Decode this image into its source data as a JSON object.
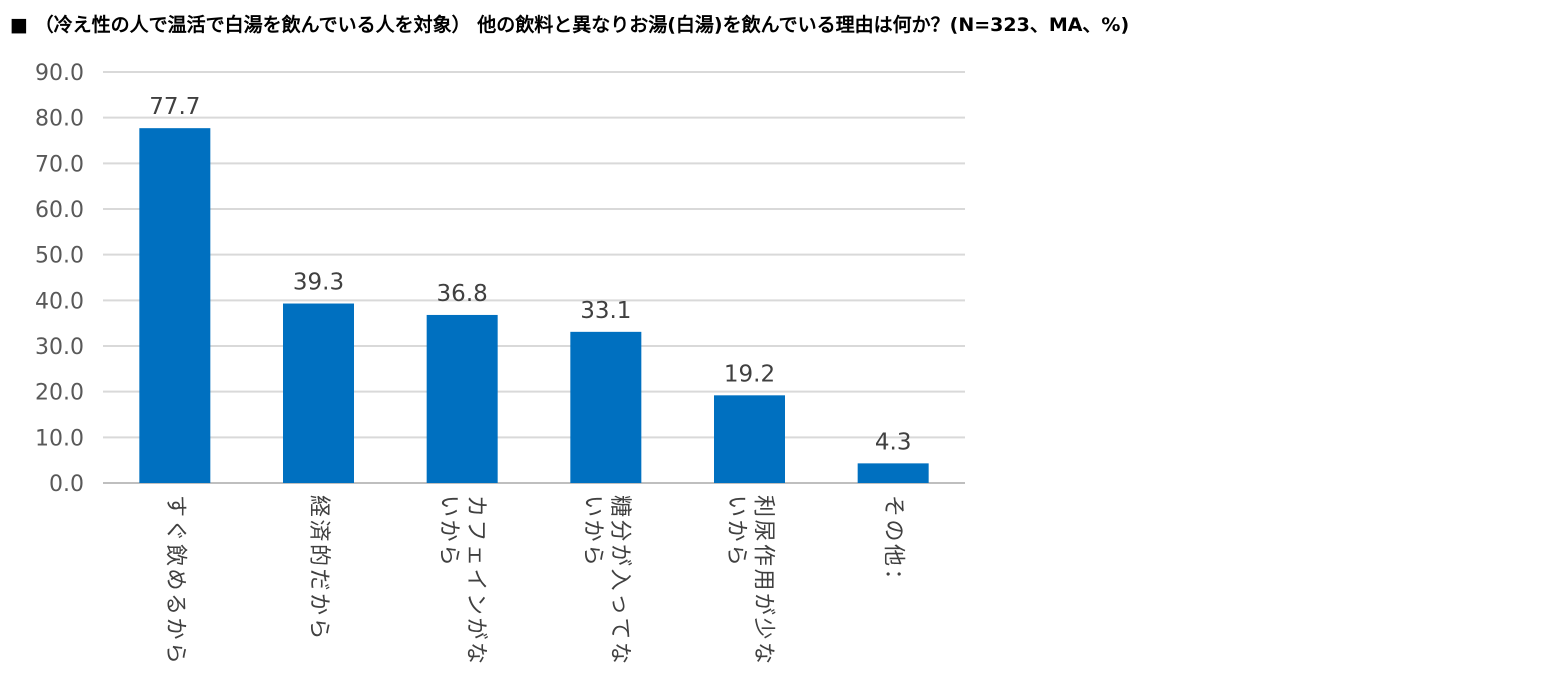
{
  "chart_data": {
    "type": "bar",
    "title": "■ （冷え性の人で温活で白湯を飲んでいる人を対象） 他の飲料と異なりお湯(白湯)を飲んでいる理由は何か？(N=323、MA、%)",
    "categories": [
      [
        "すぐ飲めるから"
      ],
      [
        "経済的だから"
      ],
      [
        "カフェインがな",
        "いから"
      ],
      [
        "糖分が入ってな",
        "いから"
      ],
      [
        "利尿作用が少な",
        "いから"
      ],
      [
        "その他："
      ]
    ],
    "values": [
      77.7,
      39.3,
      36.8,
      33.1,
      19.2,
      4.3
    ],
    "data_labels": [
      "77.7",
      "39.3",
      "36.8",
      "33.1",
      "19.2",
      "4.3"
    ],
    "y_ticks": [
      "0.0",
      "10.0",
      "20.0",
      "30.0",
      "40.0",
      "50.0",
      "60.0",
      "70.0",
      "80.0",
      "90.0"
    ],
    "ylim": [
      0,
      90
    ],
    "grid": true,
    "legend": "none",
    "colors": {
      "bar": "#0070C0",
      "grid": "#D9D9D9",
      "axis": "#BFBFBF"
    }
  }
}
